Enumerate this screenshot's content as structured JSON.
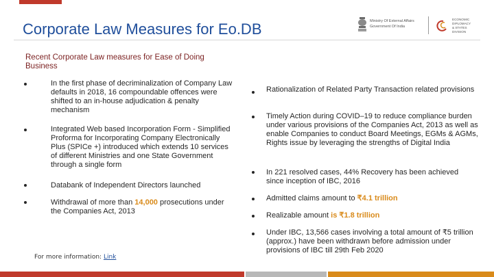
{
  "title": "Corporate Law Measures for Eo.DB",
  "subtitle": "Recent Corporate Law measures for Ease of Doing Business",
  "logos": {
    "emblem_icon": "national-emblem-icon",
    "mea_line1": "Ministry Of External Affairs",
    "mea_line2": "Government Of India",
    "division_logo_icon": "edpd-swirl-icon",
    "division_lines": [
      "ECONOMIC",
      "DIPLOMACY",
      "& STATES",
      "DIVISION"
    ]
  },
  "left_bullets": [
    {
      "text": "In the first phase of decriminalization of Company Law defaults in 2018, 16 compoundable offences were shifted to an in-house adjudication & penalty mechanism"
    },
    {
      "text": "Integrated Web based Incorporation Form - Simplified Proforma for Incorporating Company Electronically Plus (SPICe +) introduced which extends 10 services of different Ministries and one State Government through a single form"
    },
    {
      "text": "Databank of Independent Directors launched"
    },
    {
      "pre": "Withdrawal of more than ",
      "hl": "14,000",
      "post": " prosecutions under the Companies Act, 2013"
    }
  ],
  "right_bullets": [
    {
      "text": "Rationalization of Related Party Transaction related provisions"
    },
    {
      "text": "Timely Action during COVID–19 to reduce compliance burden under various provisions of the Companies Act, 2013 as well as enable Companies to conduct Board Meetings, EGMs & AGMs, Rights issue by leveraging the strengths of Digital India"
    },
    {
      "text": "In 221 resolved cases, 44% Recovery has been achieved since inception of IBC, 2016"
    },
    {
      "pre": "Admitted claims amount to ",
      "hl": "₹4.1 trillion"
    },
    {
      "pre": "Realizable amount ",
      "hl": "is ₹1.8 trillion"
    },
    {
      "text": "Under IBC, 13,566 cases involving a total amount of ₹5 trillion (approx.) have been withdrawn before admission under provisions of IBC till 29th Feb 2020"
    }
  ],
  "footer": {
    "note": "For more information: ",
    "link": "Link"
  },
  "colors": {
    "title": "#1f4e9b",
    "highlight": "#d98a1a",
    "accent_red": "#c0392b"
  }
}
